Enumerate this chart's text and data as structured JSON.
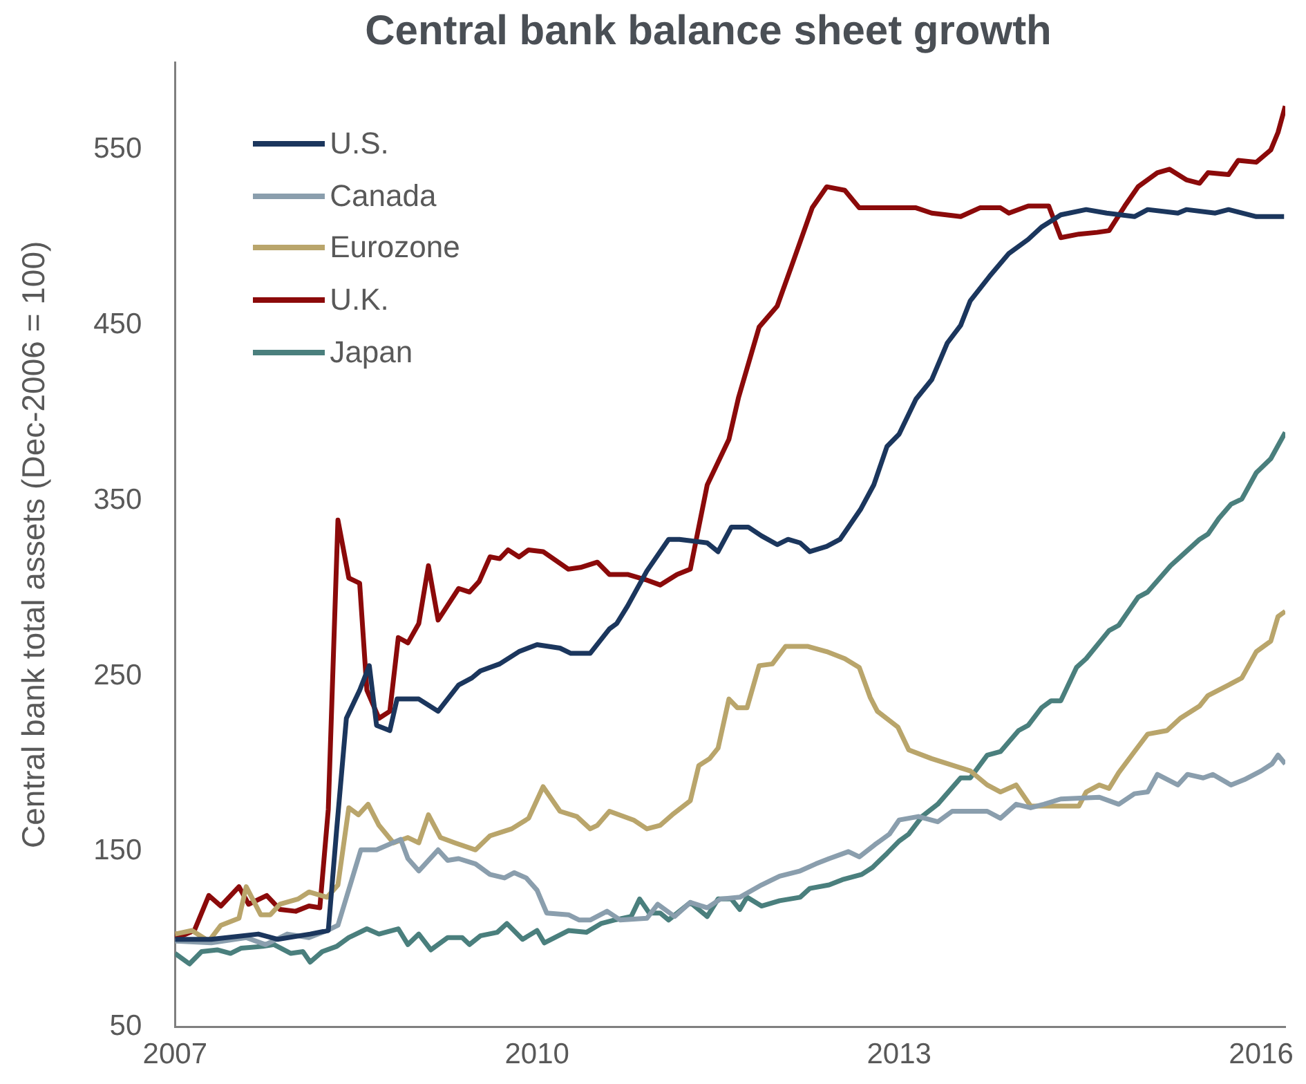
{
  "chart_data": {
    "type": "line",
    "title": "Central bank balance sheet growth",
    "ylabel": "Central bank total assets (Dec-2006 = 100)",
    "xlim": [
      2007,
      2016.2
    ],
    "xticks": [
      2007,
      2010,
      2013,
      2016
    ],
    "ylim": [
      50,
      600
    ],
    "yticks": [
      50,
      150,
      250,
      350,
      450,
      550
    ],
    "grid": false,
    "legend": "top left",
    "series": [
      {
        "name": "U.S.",
        "color": "#1b365d",
        "x": [
          2007.0,
          2007.3,
          2007.69,
          2007.85,
          2008.12,
          2008.27,
          2008.34,
          2008.42,
          2008.53,
          2008.61,
          2008.67,
          2008.78,
          2008.84,
          2009.02,
          2009.18,
          2009.35,
          2009.46,
          2009.53,
          2009.69,
          2009.85,
          2010.0,
          2010.19,
          2010.28,
          2010.44,
          2010.6,
          2010.66,
          2010.75,
          2010.91,
          2011.09,
          2011.18,
          2011.41,
          2011.5,
          2011.61,
          2011.75,
          2011.86,
          2011.99,
          2012.08,
          2012.18,
          2012.26,
          2012.4,
          2012.51,
          2012.58,
          2012.68,
          2012.79,
          2012.9,
          2013.0,
          2013.14,
          2013.27,
          2013.4,
          2013.51,
          2013.59,
          2013.75,
          2013.91,
          2014.07,
          2014.18,
          2014.34,
          2014.55,
          2014.72,
          2014.95,
          2015.06,
          2015.31,
          2015.38,
          2015.62,
          2015.73,
          2015.96,
          2016.19
        ],
        "values": [
          100,
          100,
          103,
          100,
          103,
          105,
          163,
          226,
          242,
          256,
          222,
          219,
          237,
          237,
          230,
          245,
          249,
          253,
          257,
          264,
          268,
          266,
          263,
          263,
          277,
          280,
          290,
          310,
          328,
          328,
          326,
          321,
          335,
          335,
          330,
          325,
          328,
          326,
          321,
          324,
          328,
          335,
          345,
          359,
          381,
          388,
          408,
          419,
          440,
          450,
          464,
          478,
          491,
          499,
          506,
          513,
          516,
          514,
          512,
          516,
          514,
          516,
          514,
          516,
          512,
          512
        ]
      },
      {
        "name": "Canada",
        "color": "#8a9ead",
        "x": [
          2007.0,
          2007.3,
          2007.59,
          2007.75,
          2007.93,
          2008.11,
          2008.26,
          2008.35,
          2008.54,
          2008.67,
          2008.87,
          2008.93,
          2009.02,
          2009.18,
          2009.26,
          2009.35,
          2009.49,
          2009.61,
          2009.73,
          2009.81,
          2009.91,
          2010.0,
          2010.08,
          2010.26,
          2010.35,
          2010.44,
          2010.58,
          2010.69,
          2010.91,
          2011.0,
          2011.14,
          2011.27,
          2011.41,
          2011.52,
          2011.68,
          2011.86,
          2012.01,
          2012.18,
          2012.31,
          2012.42,
          2012.58,
          2012.67,
          2012.8,
          2012.92,
          2013.0,
          2013.16,
          2013.32,
          2013.44,
          2013.59,
          2013.73,
          2013.84,
          2013.97,
          2014.09,
          2014.2,
          2014.34,
          2014.66,
          2014.82,
          2014.95,
          2015.06,
          2015.14,
          2015.31,
          2015.39,
          2015.52,
          2015.6,
          2015.75,
          2015.86,
          2016.0,
          2016.09,
          2016.14,
          2016.2
        ],
        "values": [
          99,
          98,
          101,
          97,
          103,
          101,
          105,
          108,
          151,
          151,
          157,
          146,
          139,
          151,
          145,
          146,
          143,
          137,
          135,
          138,
          135,
          128,
          115,
          114,
          111,
          111,
          116,
          111,
          112,
          120,
          113,
          121,
          118,
          123,
          124,
          131,
          136,
          139,
          143,
          146,
          150,
          147,
          154,
          160,
          168,
          170,
          167,
          173,
          173,
          173,
          169,
          177,
          175,
          177,
          180,
          181,
          177,
          183,
          184,
          194,
          188,
          194,
          192,
          194,
          188,
          191,
          196,
          200,
          205,
          200
        ]
      },
      {
        "name": "Eurozone",
        "color": "#b9a56b",
        "x": [
          2007.0,
          2007.14,
          2007.28,
          2007.38,
          2007.53,
          2007.59,
          2007.71,
          2007.79,
          2007.87,
          2008.02,
          2008.11,
          2008.26,
          2008.35,
          2008.44,
          2008.52,
          2008.6,
          2008.69,
          2008.81,
          2008.93,
          2009.02,
          2009.1,
          2009.2,
          2009.32,
          2009.49,
          2009.61,
          2009.79,
          2009.93,
          2010.05,
          2010.19,
          2010.33,
          2010.44,
          2010.5,
          2010.6,
          2010.8,
          2010.91,
          2011.02,
          2011.12,
          2011.27,
          2011.34,
          2011.43,
          2011.5,
          2011.59,
          2011.66,
          2011.74,
          2011.84,
          2011.95,
          2012.06,
          2012.24,
          2012.4,
          2012.55,
          2012.67,
          2012.76,
          2012.82,
          2012.99,
          2013.08,
          2013.27,
          2013.59,
          2013.73,
          2013.84,
          2013.97,
          2014.09,
          2014.49,
          2014.55,
          2014.66,
          2014.74,
          2014.82,
          2014.95,
          2015.06,
          2015.22,
          2015.33,
          2015.49,
          2015.56,
          2015.73,
          2015.84,
          2015.96,
          2016.08,
          2016.14,
          2016.2
        ],
        "values": [
          103,
          105,
          99,
          108,
          112,
          130,
          114,
          114,
          120,
          123,
          127,
          124,
          131,
          175,
          171,
          177,
          165,
          155,
          158,
          155,
          171,
          158,
          155,
          151,
          159,
          163,
          169,
          187,
          173,
          170,
          163,
          165,
          173,
          168,
          163,
          165,
          171,
          179,
          199,
          203,
          209,
          237,
          232,
          232,
          256,
          257,
          267,
          267,
          264,
          260,
          255,
          238,
          230,
          221,
          208,
          203,
          196,
          188,
          184,
          188,
          176,
          176,
          184,
          188,
          186,
          195,
          207,
          217,
          219,
          226,
          233,
          239,
          245,
          249,
          264,
          270,
          284,
          287
        ]
      },
      {
        "name": "U.K.",
        "color": "#8b0a0a",
        "x": [
          2007.0,
          2007.02,
          2007.16,
          2007.28,
          2007.38,
          2007.53,
          2007.61,
          2007.76,
          2007.87,
          2008.0,
          2008.11,
          2008.2,
          2008.27,
          2008.35,
          2008.44,
          2008.53,
          2008.59,
          2008.69,
          2008.78,
          2008.85,
          2008.93,
          2009.02,
          2009.1,
          2009.18,
          2009.35,
          2009.44,
          2009.52,
          2009.61,
          2009.69,
          2009.76,
          2009.85,
          2009.93,
          2010.05,
          2010.26,
          2010.36,
          2010.5,
          2010.6,
          2010.75,
          2010.9,
          2011.02,
          2011.16,
          2011.27,
          2011.41,
          2011.59,
          2011.67,
          2011.84,
          2011.99,
          2012.11,
          2012.28,
          2012.4,
          2012.55,
          2012.67,
          2012.79,
          2013.14,
          2013.27,
          2013.51,
          2013.67,
          2013.84,
          2013.91,
          2014.07,
          2014.24,
          2014.34,
          2014.49,
          2014.64,
          2014.74,
          2014.87,
          2014.98,
          2015.14,
          2015.24,
          2015.38,
          2015.49,
          2015.56,
          2015.73,
          2015.81,
          2015.96,
          2016.08,
          2016.14,
          2016.2
        ],
        "values": [
          104,
          101,
          105,
          125,
          119,
          130,
          120,
          125,
          117,
          116,
          119,
          118,
          174,
          339,
          306,
          303,
          242,
          226,
          230,
          272,
          269,
          280,
          313,
          282,
          300,
          298,
          304,
          318,
          317,
          322,
          318,
          322,
          321,
          311,
          312,
          315,
          308,
          308,
          305,
          302,
          308,
          311,
          359,
          385,
          409,
          449,
          461,
          484,
          517,
          529,
          527,
          517,
          517,
          517,
          514,
          512,
          517,
          517,
          514,
          518,
          518,
          500,
          502,
          503,
          504,
          518,
          529,
          537,
          539,
          533,
          531,
          537,
          536,
          544,
          543,
          550,
          560,
          575
        ]
      },
      {
        "name": "Japan",
        "color": "#4a7f7d",
        "x": [
          2007.0,
          2007.02,
          2007.12,
          2007.22,
          2007.35,
          2007.46,
          2007.55,
          2007.73,
          2007.82,
          2007.96,
          2008.06,
          2008.12,
          2008.22,
          2008.34,
          2008.44,
          2008.59,
          2008.69,
          2008.85,
          2008.93,
          2009.02,
          2009.12,
          2009.26,
          2009.38,
          2009.44,
          2009.53,
          2009.67,
          2009.75,
          2009.88,
          2010.0,
          2010.06,
          2010.26,
          2010.41,
          2010.53,
          2010.64,
          2010.78,
          2010.85,
          2010.93,
          2011.02,
          2011.09,
          2011.27,
          2011.41,
          2011.5,
          2011.61,
          2011.68,
          2011.74,
          2011.86,
          2012.01,
          2012.18,
          2012.26,
          2012.42,
          2012.53,
          2012.69,
          2012.78,
          2012.9,
          2013.0,
          2013.08,
          2013.19,
          2013.32,
          2013.51,
          2013.59,
          2013.73,
          2013.84,
          2013.99,
          2014.07,
          2014.18,
          2014.26,
          2014.34,
          2014.47,
          2014.55,
          2014.74,
          2014.82,
          2014.98,
          2015.06,
          2015.25,
          2015.33,
          2015.49,
          2015.56,
          2015.65,
          2015.75,
          2015.84,
          2015.96,
          2016.08,
          2016.2
        ],
        "values": [
          92,
          91,
          86,
          93,
          94,
          92,
          95,
          96,
          97,
          92,
          93,
          87,
          93,
          96,
          101,
          106,
          103,
          106,
          97,
          103,
          94,
          101,
          101,
          97,
          102,
          104,
          109,
          100,
          105,
          98,
          105,
          104,
          109,
          111,
          113,
          123,
          115,
          115,
          111,
          121,
          113,
          123,
          123,
          117,
          124,
          119,
          122,
          124,
          129,
          131,
          134,
          137,
          141,
          149,
          156,
          160,
          170,
          177,
          192,
          192,
          205,
          207,
          219,
          222,
          232,
          236,
          236,
          255,
          260,
          276,
          279,
          295,
          298,
          313,
          318,
          328,
          331,
          340,
          348,
          351,
          366,
          374,
          389
        ]
      }
    ]
  }
}
